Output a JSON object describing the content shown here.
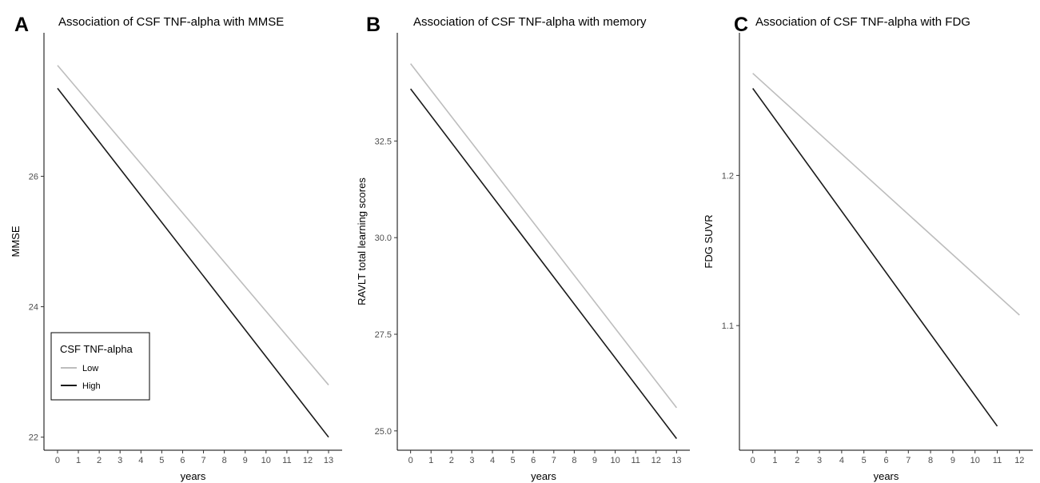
{
  "chart_data": [
    {
      "type": "line",
      "panel_label": "A",
      "title": "Association of CSF TNF-alpha with MMSE",
      "xlabel": "years",
      "ylabel": "MMSE",
      "x_ticks": [
        0,
        1,
        2,
        3,
        4,
        5,
        6,
        7,
        8,
        9,
        10,
        11,
        12,
        13
      ],
      "y_ticks": [
        22,
        24,
        26
      ],
      "y_tick_labels": [
        "22",
        "24",
        "26"
      ],
      "xlim": [
        -0.65,
        13.65
      ],
      "ylim": [
        21.8,
        28.2
      ],
      "grid": false,
      "legend": {
        "title": "CSF TNF-alpha",
        "position": "bottom-left",
        "entries": [
          "Low",
          "High"
        ]
      },
      "series": [
        {
          "name": "Low",
          "color": "#bdbdbd",
          "x": [
            0,
            13
          ],
          "y": [
            27.7,
            22.8
          ]
        },
        {
          "name": "High",
          "color": "#1a1a1a",
          "x": [
            0,
            13
          ],
          "y": [
            27.35,
            22.0
          ]
        }
      ]
    },
    {
      "type": "line",
      "panel_label": "B",
      "title": "Association of CSF TNF-alpha with memory",
      "xlabel": "years",
      "ylabel": "RAVLT total learning scores",
      "x_ticks": [
        0,
        1,
        2,
        3,
        4,
        5,
        6,
        7,
        8,
        9,
        10,
        11,
        12,
        13
      ],
      "y_ticks": [
        25.0,
        27.5,
        30.0,
        32.5
      ],
      "y_tick_labels": [
        "25.0",
        "27.5",
        "30.0",
        "32.5"
      ],
      "xlim": [
        -0.65,
        13.65
      ],
      "ylim": [
        24.5,
        35.3
      ],
      "grid": false,
      "series": [
        {
          "name": "Low",
          "color": "#bdbdbd",
          "x": [
            0,
            13
          ],
          "y": [
            34.5,
            25.6
          ]
        },
        {
          "name": "High",
          "color": "#1a1a1a",
          "x": [
            0,
            13
          ],
          "y": [
            33.85,
            24.8
          ]
        }
      ]
    },
    {
      "type": "line",
      "panel_label": "C",
      "title": "Association of CSF TNF-alpha with FDG",
      "xlabel": "years",
      "ylabel": "FDG SUVR",
      "x_ticks": [
        0,
        1,
        2,
        3,
        4,
        5,
        6,
        7,
        8,
        9,
        10,
        11,
        12
      ],
      "y_ticks": [
        1.1,
        1.2
      ],
      "y_tick_labels": [
        "1.1",
        "1.2"
      ],
      "xlim": [
        -0.6,
        12.6
      ],
      "ylim": [
        1.017,
        1.295
      ],
      "grid": false,
      "series": [
        {
          "name": "Low",
          "color": "#bdbdbd",
          "x": [
            0,
            12
          ],
          "y": [
            1.268,
            1.107
          ]
        },
        {
          "name": "High",
          "color": "#1a1a1a",
          "x": [
            0,
            11
          ],
          "y": [
            1.258,
            1.033
          ]
        }
      ]
    }
  ]
}
